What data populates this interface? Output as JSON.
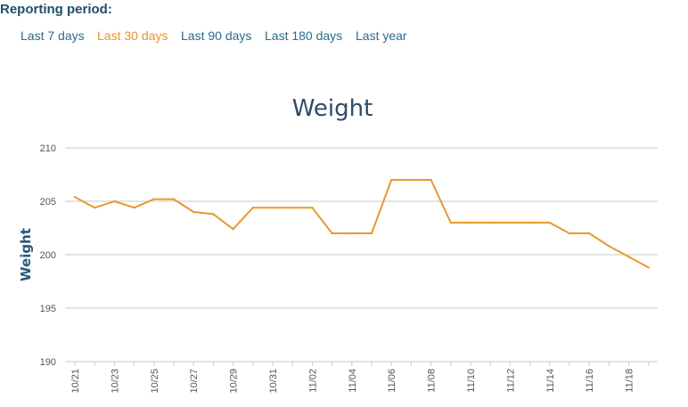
{
  "reporting": {
    "label": "Reporting period:",
    "options": [
      {
        "label": "Last 7 days",
        "active": false
      },
      {
        "label": "Last 30 days",
        "active": true
      },
      {
        "label": "Last 90 days",
        "active": false
      },
      {
        "label": "Last 180 days",
        "active": false
      },
      {
        "label": "Last year",
        "active": false
      }
    ]
  },
  "colors": {
    "series": "#e8992e",
    "active_link": "#e8922b",
    "link": "#2c6a8a",
    "grid": "#c8c8c8"
  },
  "chart_data": {
    "type": "line",
    "title": "Weight",
    "ylabel": "Weight",
    "xlabel": "",
    "ylim": [
      190,
      210
    ],
    "yticks": [
      190,
      195,
      200,
      205,
      210
    ],
    "grid": true,
    "x": [
      "10/21",
      "10/22",
      "10/23",
      "10/24",
      "10/25",
      "10/26",
      "10/27",
      "10/28",
      "10/29",
      "10/30",
      "10/31",
      "11/01",
      "11/02",
      "11/03",
      "11/04",
      "11/05",
      "11/06",
      "11/07",
      "11/08",
      "11/09",
      "11/10",
      "11/11",
      "11/12",
      "11/13",
      "11/14",
      "11/15",
      "11/16",
      "11/17",
      "11/18",
      "11/19"
    ],
    "xtick_labels": [
      "10/21",
      "10/23",
      "10/25",
      "10/27",
      "10/29",
      "10/31",
      "11/02",
      "11/04",
      "11/06",
      "11/08",
      "11/10",
      "11/12",
      "11/14",
      "11/16",
      "11/18"
    ],
    "series": [
      {
        "values": [
          205.4,
          204.4,
          205.0,
          204.4,
          205.2,
          205.2,
          204.0,
          203.8,
          202.4,
          204.4,
          204.4,
          204.4,
          204.4,
          202.0,
          202.0,
          202.0,
          207.0,
          207.0,
          207.0,
          203.0,
          203.0,
          203.0,
          203.0,
          203.0,
          203.0,
          202.0,
          202.0,
          200.8,
          199.8,
          198.8
        ]
      }
    ]
  }
}
